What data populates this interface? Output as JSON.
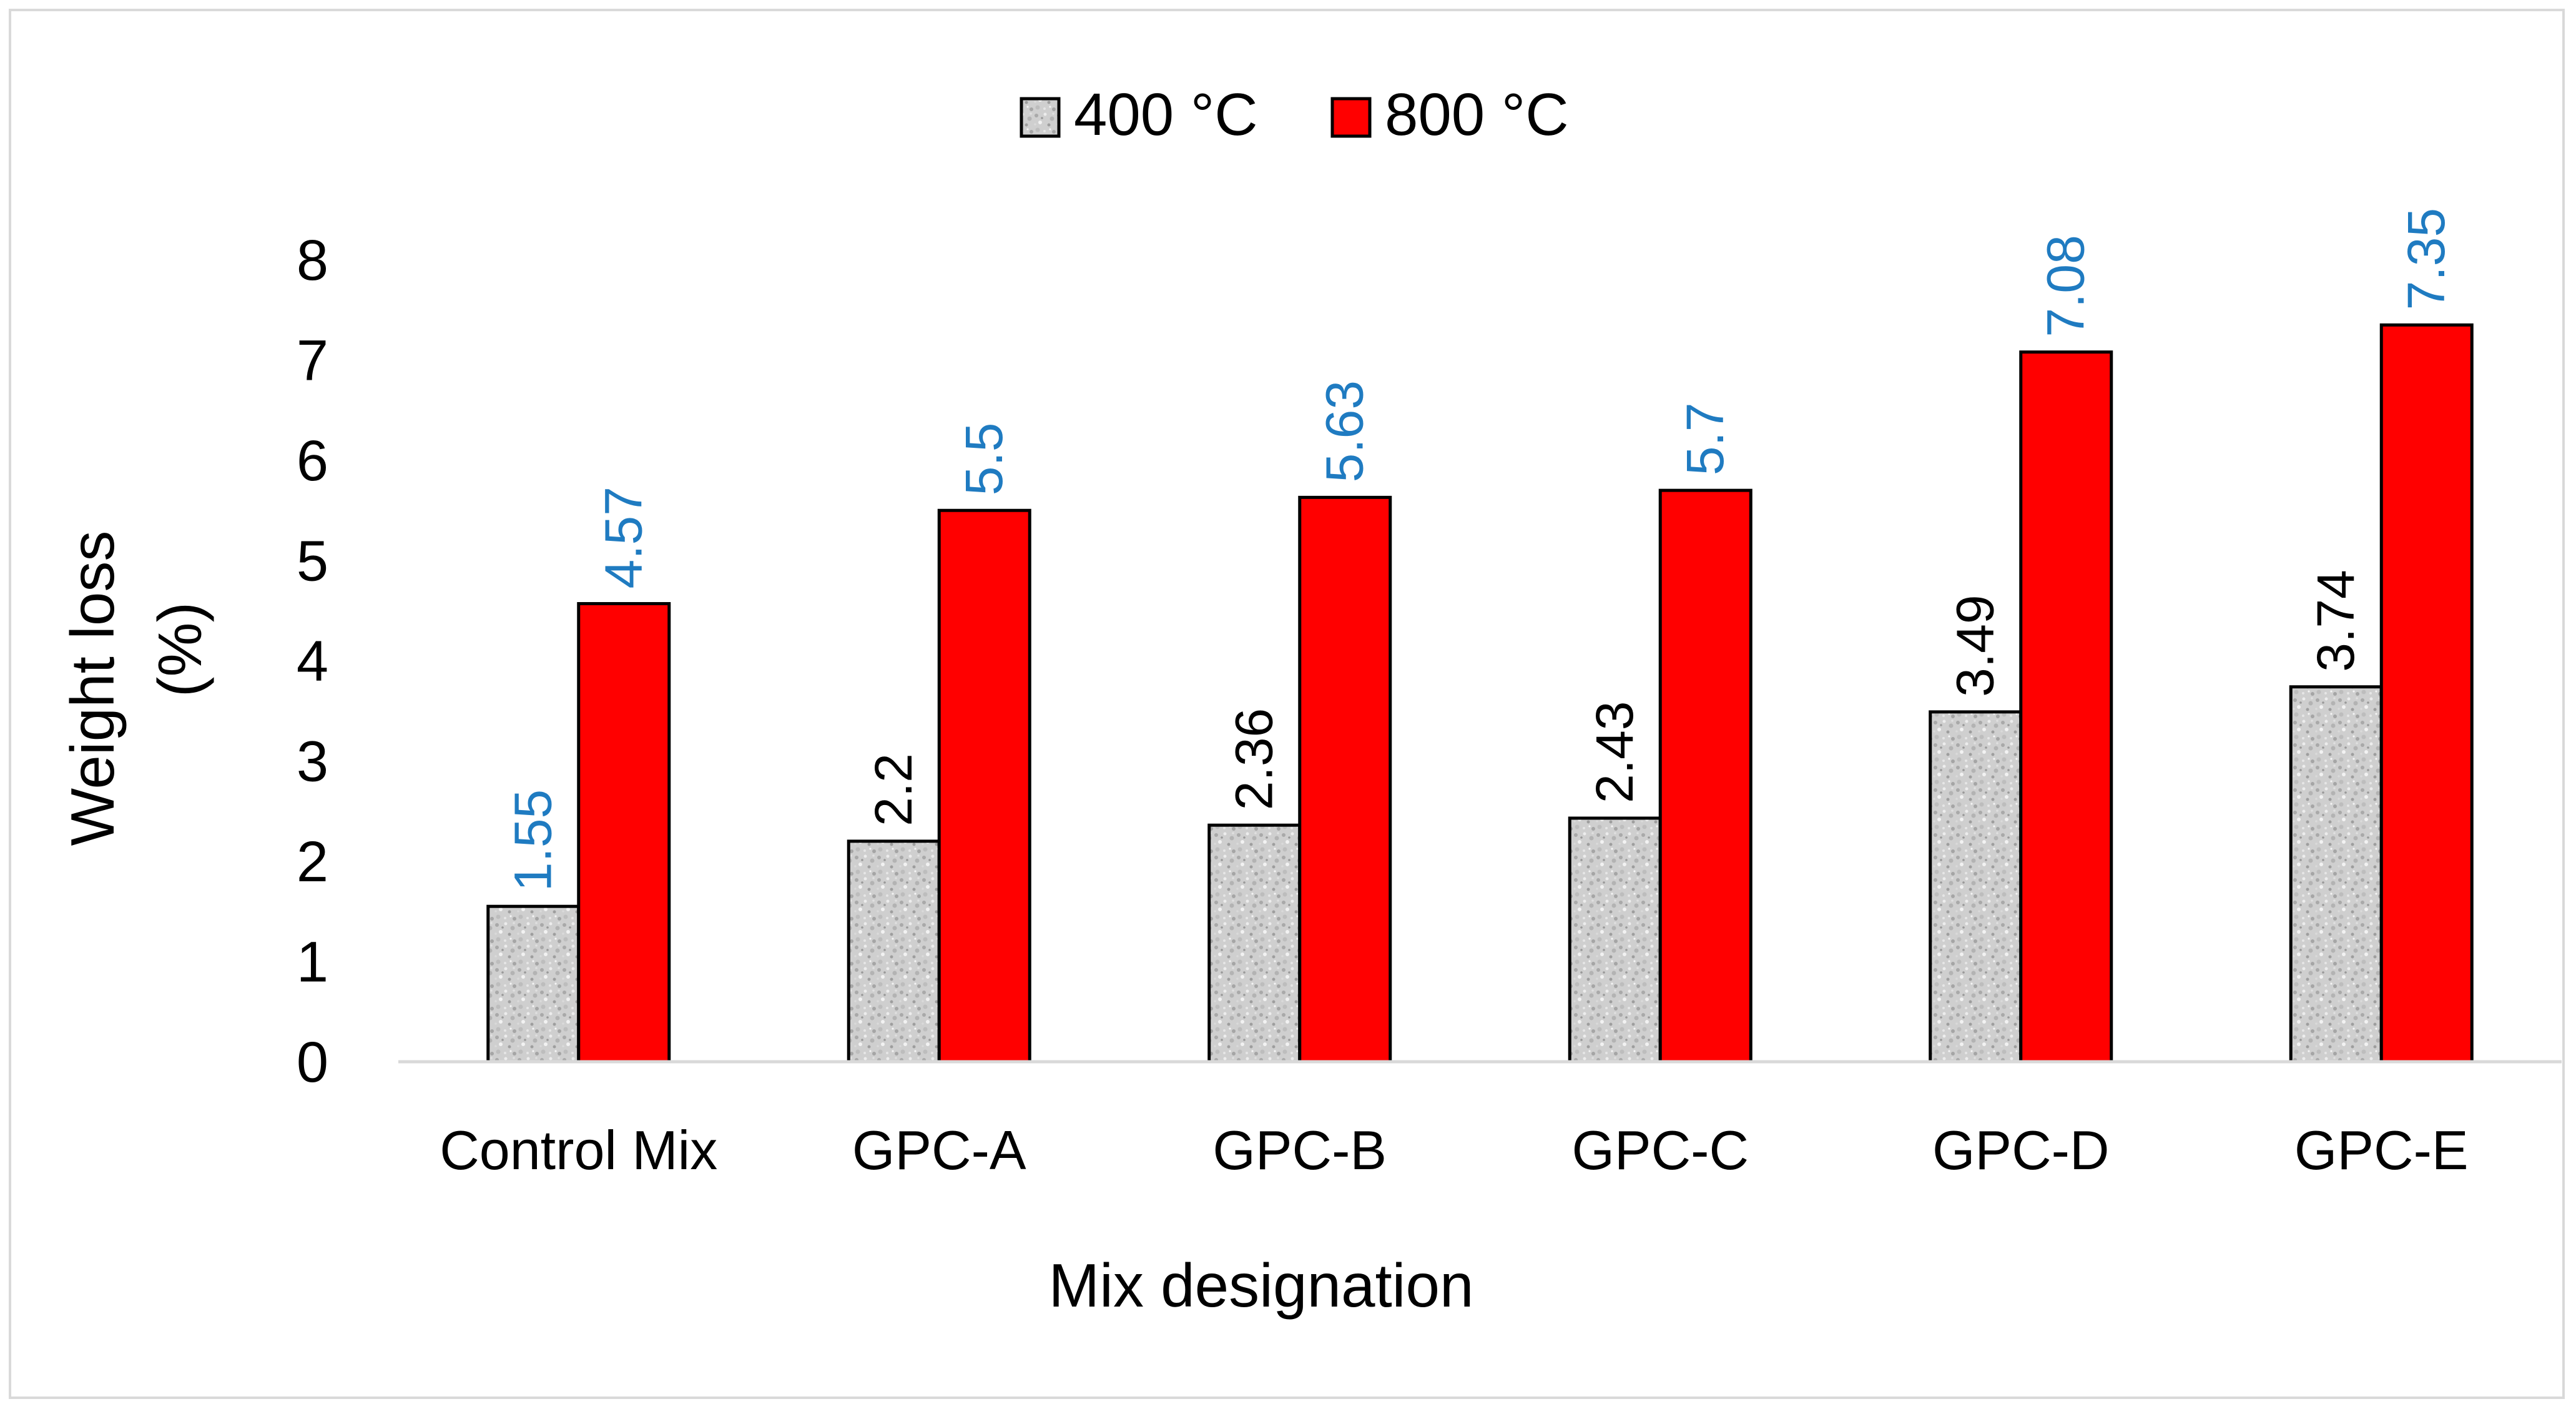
{
  "chart_data": {
    "type": "bar",
    "title": "",
    "xlabel": "Mix designation",
    "ylabel_lines": [
      "Weight loss",
      "(%)"
    ],
    "categories": [
      "Control Mix",
      "GPC-A",
      "GPC-B",
      "GPC-C",
      "GPC-D",
      "GPC-E"
    ],
    "series": [
      {
        "name": "400 °C",
        "values": [
          1.55,
          2.2,
          2.36,
          2.43,
          3.49,
          3.74
        ],
        "value_labels": [
          "1.55",
          "2.2",
          "2.36",
          "2.43",
          "3.49",
          "3.74"
        ],
        "label_colors": [
          "#1f7bc1",
          "#000000",
          "#000000",
          "#000000",
          "#000000",
          "#000000"
        ],
        "fill": "granite-texture",
        "color": "#c8c8c8"
      },
      {
        "name": "800 °C",
        "values": [
          4.57,
          5.5,
          5.63,
          5.7,
          7.08,
          7.35
        ],
        "value_labels": [
          "4.57",
          "5.5",
          "5.63",
          "5.7",
          "7.08",
          "7.35"
        ],
        "label_colors": [
          "#1f7bc1",
          "#1f7bc1",
          "#1f7bc1",
          "#1f7bc1",
          "#1f7bc1",
          "#1f7bc1"
        ],
        "fill": "solid",
        "color": "#ff0000"
      }
    ],
    "ylim": [
      0,
      8
    ],
    "yticks": [
      "0",
      "1",
      "2",
      "3",
      "4",
      "5",
      "6",
      "7",
      "8"
    ],
    "grid": false,
    "legend_position": "top-center"
  }
}
